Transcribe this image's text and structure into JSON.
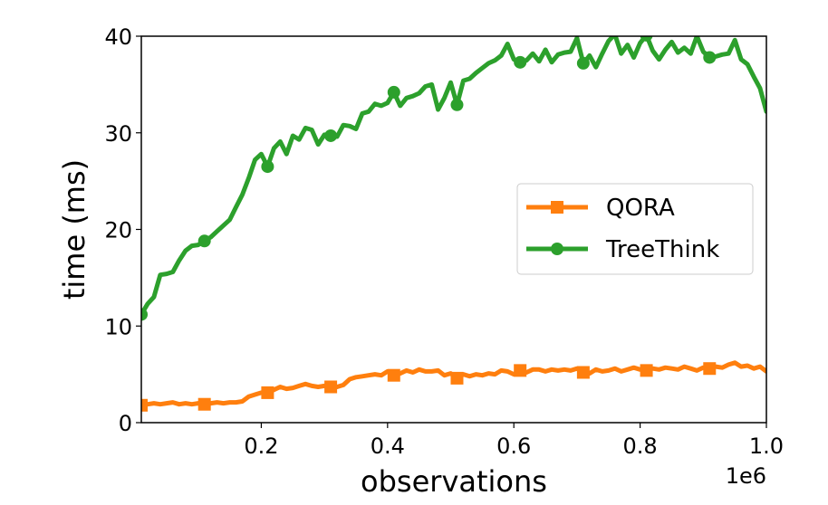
{
  "chart_data": {
    "type": "line",
    "xlabel": "observations",
    "ylabel": "time (ms)",
    "x_offset_label": "1e6",
    "xlim": [
      0.01,
      1.0
    ],
    "ylim": [
      0,
      40
    ],
    "x_ticks": [
      0.2,
      0.4,
      0.6,
      0.8,
      1.0
    ],
    "x_tick_labels": [
      "0.2",
      "0.4",
      "0.6",
      "0.8",
      "1.0"
    ],
    "y_ticks": [
      0,
      10,
      20,
      30,
      40
    ],
    "y_tick_labels": [
      "0",
      "10",
      "20",
      "30",
      "40"
    ],
    "grid": false,
    "legend_position": "center-right",
    "series": [
      {
        "name": "QORA",
        "color": "#ff7f0e",
        "marker": "square",
        "marker_x": [
          0.01,
          0.11,
          0.21,
          0.31,
          0.41,
          0.51,
          0.61,
          0.71,
          0.81,
          0.91
        ],
        "x": [
          0.01,
          0.02,
          0.03,
          0.04,
          0.05,
          0.06,
          0.07,
          0.08,
          0.09,
          0.1,
          0.11,
          0.12,
          0.13,
          0.14,
          0.15,
          0.16,
          0.17,
          0.18,
          0.19,
          0.2,
          0.21,
          0.22,
          0.23,
          0.24,
          0.25,
          0.26,
          0.27,
          0.28,
          0.29,
          0.3,
          0.31,
          0.32,
          0.33,
          0.34,
          0.35,
          0.36,
          0.37,
          0.38,
          0.39,
          0.4,
          0.41,
          0.42,
          0.43,
          0.44,
          0.45,
          0.46,
          0.47,
          0.48,
          0.49,
          0.5,
          0.51,
          0.52,
          0.53,
          0.54,
          0.55,
          0.56,
          0.57,
          0.58,
          0.59,
          0.6,
          0.61,
          0.62,
          0.63,
          0.64,
          0.65,
          0.66,
          0.67,
          0.68,
          0.69,
          0.7,
          0.71,
          0.72,
          0.73,
          0.74,
          0.75,
          0.76,
          0.77,
          0.78,
          0.79,
          0.8,
          0.81,
          0.82,
          0.83,
          0.84,
          0.85,
          0.86,
          0.87,
          0.88,
          0.89,
          0.9,
          0.91,
          0.92,
          0.93,
          0.94,
          0.95,
          0.96,
          0.97,
          0.98,
          0.99,
          1.0
        ],
        "y": [
          1.8,
          1.9,
          2.0,
          1.9,
          2.0,
          2.1,
          1.9,
          2.0,
          1.9,
          2.0,
          1.9,
          2.0,
          2.1,
          2.0,
          2.1,
          2.1,
          2.2,
          2.7,
          2.9,
          3.1,
          3.1,
          3.4,
          3.7,
          3.5,
          3.6,
          3.8,
          4.0,
          3.8,
          3.7,
          3.8,
          3.7,
          3.7,
          3.9,
          4.5,
          4.7,
          4.8,
          4.9,
          5.0,
          4.9,
          5.3,
          4.9,
          5.1,
          5.4,
          5.2,
          5.5,
          5.3,
          5.3,
          5.4,
          4.9,
          5.1,
          4.6,
          5.0,
          4.8,
          5.0,
          4.9,
          5.1,
          5.0,
          5.4,
          5.3,
          5.0,
          5.4,
          5.2,
          5.5,
          5.5,
          5.3,
          5.5,
          5.4,
          5.5,
          5.4,
          5.6,
          5.2,
          5.1,
          5.5,
          5.3,
          5.4,
          5.6,
          5.3,
          5.5,
          5.7,
          5.5,
          5.4,
          5.6,
          5.5,
          5.7,
          5.6,
          5.5,
          5.8,
          5.6,
          5.4,
          5.7,
          5.6,
          5.8,
          5.7,
          6.0,
          6.2,
          5.8,
          5.9,
          5.6,
          5.8,
          5.3
        ]
      },
      {
        "name": "TreeThink",
        "color": "#2ca02c",
        "marker": "circle",
        "marker_x": [
          0.01,
          0.11,
          0.21,
          0.31,
          0.41,
          0.51,
          0.61,
          0.71,
          0.81,
          0.91
        ],
        "x": [
          0.01,
          0.02,
          0.03,
          0.04,
          0.05,
          0.06,
          0.07,
          0.08,
          0.09,
          0.1,
          0.11,
          0.12,
          0.13,
          0.14,
          0.15,
          0.16,
          0.17,
          0.18,
          0.19,
          0.2,
          0.21,
          0.22,
          0.23,
          0.24,
          0.25,
          0.26,
          0.27,
          0.28,
          0.29,
          0.3,
          0.31,
          0.32,
          0.33,
          0.34,
          0.35,
          0.36,
          0.37,
          0.38,
          0.39,
          0.4,
          0.41,
          0.42,
          0.43,
          0.44,
          0.45,
          0.46,
          0.47,
          0.48,
          0.49,
          0.5,
          0.51,
          0.52,
          0.53,
          0.54,
          0.55,
          0.56,
          0.57,
          0.58,
          0.59,
          0.6,
          0.61,
          0.62,
          0.63,
          0.64,
          0.65,
          0.66,
          0.67,
          0.68,
          0.69,
          0.7,
          0.71,
          0.72,
          0.73,
          0.74,
          0.75,
          0.76,
          0.77,
          0.78,
          0.79,
          0.8,
          0.81,
          0.82,
          0.83,
          0.84,
          0.85,
          0.86,
          0.87,
          0.88,
          0.89,
          0.9,
          0.91,
          0.92,
          0.93,
          0.94,
          0.95,
          0.96,
          0.97,
          0.98,
          0.99,
          1.0
        ],
        "y": [
          11.2,
          12.3,
          13.0,
          15.3,
          15.4,
          15.6,
          16.8,
          17.8,
          18.3,
          18.4,
          18.8,
          19.2,
          19.8,
          20.4,
          21.0,
          22.3,
          23.6,
          25.3,
          27.2,
          27.8,
          26.5,
          28.4,
          29.1,
          27.8,
          29.7,
          29.3,
          30.5,
          30.3,
          28.8,
          29.8,
          29.7,
          29.6,
          30.8,
          30.7,
          30.4,
          32.0,
          32.2,
          33.0,
          32.8,
          33.1,
          34.2,
          32.8,
          33.6,
          33.8,
          34.1,
          34.8,
          35.0,
          32.4,
          33.6,
          35.2,
          32.9,
          35.4,
          35.6,
          36.2,
          36.7,
          37.2,
          37.5,
          38.0,
          39.2,
          37.6,
          37.3,
          37.5,
          38.2,
          37.4,
          38.6,
          37.3,
          38.1,
          38.3,
          38.4,
          39.8,
          37.2,
          38.0,
          36.8,
          38.2,
          39.5,
          40.2,
          38.2,
          39.1,
          37.8,
          39.3,
          40.1,
          38.5,
          37.6,
          38.6,
          39.4,
          38.3,
          38.8,
          38.2,
          40.0,
          38.4,
          37.8,
          37.9,
          38.1,
          38.2,
          39.6,
          37.6,
          37.1,
          35.8,
          34.6,
          32.2
        ]
      }
    ]
  }
}
